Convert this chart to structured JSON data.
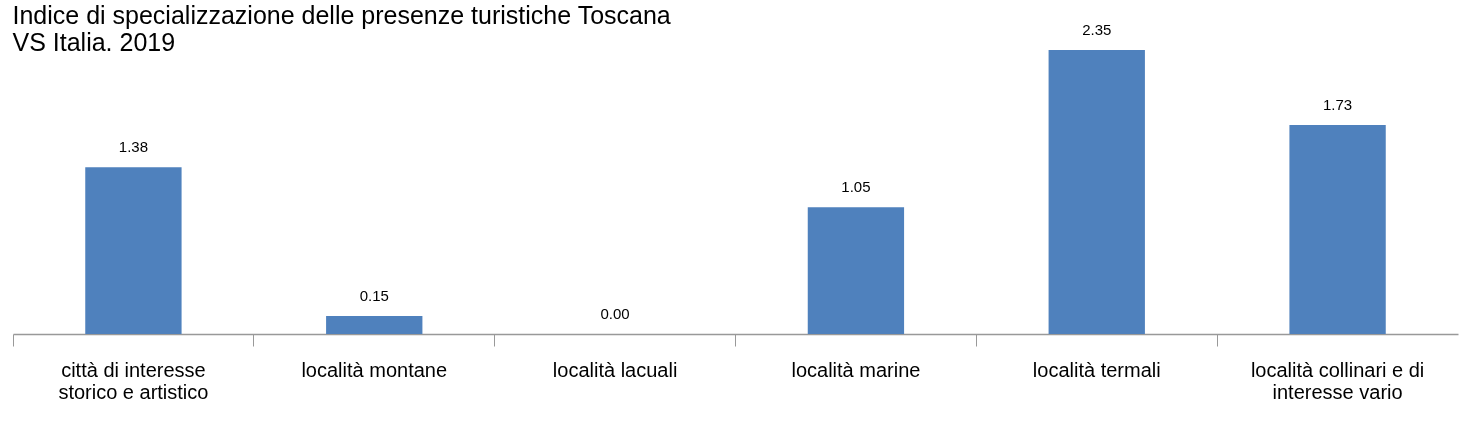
{
  "chart_data": {
    "type": "bar",
    "title": "Indice di specializzazione delle presenze turistiche Toscana VS Italia. 2019",
    "categories": [
      "città di interesse storico e artistico",
      "località montane",
      "località lacuali",
      "località marine",
      "località termali",
      "località collinari e di interesse vario"
    ],
    "values": [
      1.38,
      0.15,
      0.0,
      1.05,
      2.35,
      1.73
    ],
    "value_labels": [
      "1.38",
      "0.15",
      "0.00",
      "1.05",
      "2.35",
      "1.73"
    ],
    "color": "#4f81bd",
    "grid": false
  }
}
